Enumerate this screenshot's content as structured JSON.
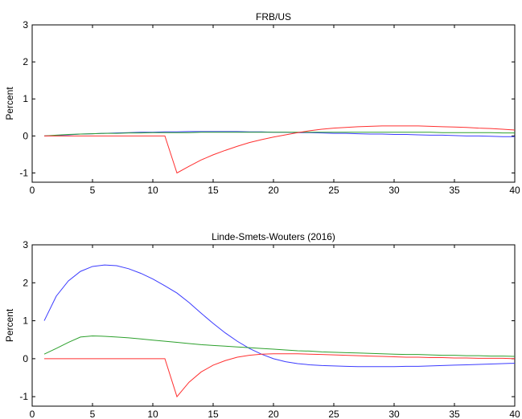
{
  "chart_data": [
    {
      "type": "line",
      "title": "FRB/US",
      "xlabel": "",
      "ylabel": "Percent",
      "xlim": [
        0,
        40
      ],
      "ylim": [
        -1.25,
        3
      ],
      "xticks": [
        0,
        5,
        10,
        15,
        20,
        25,
        30,
        35,
        40
      ],
      "yticks": [
        -1,
        0,
        1,
        2,
        3
      ],
      "grid": false,
      "series": [
        {
          "color": "#3b3bff",
          "x": [
            1,
            2,
            3,
            4,
            5,
            6,
            7,
            8,
            9,
            10,
            11,
            12,
            13,
            14,
            15,
            16,
            17,
            18,
            19,
            20,
            21,
            22,
            23,
            24,
            25,
            26,
            27,
            28,
            29,
            30,
            31,
            32,
            33,
            34,
            35,
            36,
            37,
            38,
            39,
            40
          ],
          "values": [
            0,
            0.01,
            0.03,
            0.05,
            0.06,
            0.07,
            0.08,
            0.09,
            0.1,
            0.1,
            0.11,
            0.11,
            0.12,
            0.12,
            0.12,
            0.12,
            0.12,
            0.11,
            0.11,
            0.1,
            0.1,
            0.09,
            0.09,
            0.08,
            0.07,
            0.07,
            0.06,
            0.05,
            0.05,
            0.04,
            0.04,
            0.03,
            0.02,
            0.02,
            0.01,
            0.0,
            0.0,
            -0.01,
            -0.02,
            -0.02
          ]
        },
        {
          "color": "#2ca02c",
          "x": [
            1,
            2,
            3,
            4,
            5,
            6,
            7,
            8,
            9,
            10,
            11,
            12,
            13,
            14,
            15,
            16,
            17,
            18,
            19,
            20,
            21,
            22,
            23,
            24,
            25,
            26,
            27,
            28,
            29,
            30,
            31,
            32,
            33,
            34,
            35,
            36,
            37,
            38,
            39,
            40
          ],
          "values": [
            0,
            0.02,
            0.04,
            0.05,
            0.06,
            0.07,
            0.07,
            0.08,
            0.08,
            0.09,
            0.09,
            0.09,
            0.09,
            0.1,
            0.1,
            0.1,
            0.1,
            0.1,
            0.1,
            0.1,
            0.1,
            0.1,
            0.1,
            0.1,
            0.1,
            0.1,
            0.1,
            0.1,
            0.1,
            0.1,
            0.1,
            0.1,
            0.1,
            0.09,
            0.09,
            0.09,
            0.09,
            0.09,
            0.08,
            0.08
          ]
        },
        {
          "color": "#ff3030",
          "x": [
            1,
            2,
            3,
            4,
            5,
            6,
            7,
            8,
            9,
            10,
            11,
            12,
            13,
            14,
            15,
            16,
            17,
            18,
            19,
            20,
            21,
            22,
            23,
            24,
            25,
            26,
            27,
            28,
            29,
            30,
            31,
            32,
            33,
            34,
            35,
            36,
            37,
            38,
            39,
            40
          ],
          "values": [
            0,
            0,
            0,
            0,
            0,
            0,
            0,
            0,
            0,
            0,
            0,
            -1.0,
            -0.82,
            -0.65,
            -0.51,
            -0.39,
            -0.28,
            -0.18,
            -0.1,
            -0.03,
            0.03,
            0.09,
            0.14,
            0.18,
            0.21,
            0.23,
            0.25,
            0.26,
            0.27,
            0.27,
            0.27,
            0.27,
            0.26,
            0.25,
            0.24,
            0.23,
            0.21,
            0.2,
            0.18,
            0.16
          ]
        }
      ]
    },
    {
      "type": "line",
      "title": "Linde-Smets-Wouters (2016)",
      "xlabel": "",
      "ylabel": "Percent",
      "xlim": [
        0,
        40
      ],
      "ylim": [
        -1.25,
        3
      ],
      "xticks": [
        0,
        5,
        10,
        15,
        20,
        25,
        30,
        35,
        40
      ],
      "yticks": [
        -1,
        0,
        1,
        2,
        3
      ],
      "grid": false,
      "series": [
        {
          "color": "#3b3bff",
          "x": [
            1,
            2,
            3,
            4,
            5,
            6,
            7,
            8,
            9,
            10,
            11,
            12,
            13,
            14,
            15,
            16,
            17,
            18,
            19,
            20,
            21,
            22,
            23,
            24,
            25,
            26,
            27,
            28,
            29,
            30,
            31,
            32,
            33,
            34,
            35,
            36,
            37,
            38,
            39,
            40
          ],
          "values": [
            1.0,
            1.65,
            2.05,
            2.3,
            2.43,
            2.47,
            2.45,
            2.37,
            2.25,
            2.1,
            1.92,
            1.73,
            1.48,
            1.2,
            0.93,
            0.68,
            0.46,
            0.27,
            0.12,
            0.0,
            -0.08,
            -0.13,
            -0.16,
            -0.18,
            -0.19,
            -0.2,
            -0.21,
            -0.21,
            -0.21,
            -0.21,
            -0.2,
            -0.2,
            -0.19,
            -0.18,
            -0.17,
            -0.16,
            -0.15,
            -0.14,
            -0.13,
            -0.12
          ]
        },
        {
          "color": "#2ca02c",
          "x": [
            1,
            2,
            3,
            4,
            5,
            6,
            7,
            8,
            9,
            10,
            11,
            12,
            13,
            14,
            15,
            16,
            17,
            18,
            19,
            20,
            21,
            22,
            23,
            24,
            25,
            26,
            27,
            28,
            29,
            30,
            31,
            32,
            33,
            34,
            35,
            36,
            37,
            38,
            39,
            40
          ],
          "values": [
            0.12,
            0.27,
            0.43,
            0.57,
            0.6,
            0.59,
            0.57,
            0.55,
            0.52,
            0.49,
            0.46,
            0.43,
            0.4,
            0.37,
            0.35,
            0.33,
            0.31,
            0.29,
            0.27,
            0.25,
            0.23,
            0.21,
            0.2,
            0.18,
            0.17,
            0.16,
            0.15,
            0.14,
            0.13,
            0.12,
            0.11,
            0.11,
            0.1,
            0.09,
            0.09,
            0.08,
            0.08,
            0.07,
            0.07,
            0.06
          ]
        },
        {
          "color": "#ff3030",
          "x": [
            1,
            2,
            3,
            4,
            5,
            6,
            7,
            8,
            9,
            10,
            11,
            12,
            13,
            14,
            15,
            16,
            17,
            18,
            19,
            20,
            21,
            22,
            23,
            24,
            25,
            26,
            27,
            28,
            29,
            30,
            31,
            32,
            33,
            34,
            35,
            36,
            37,
            38,
            39,
            40
          ],
          "values": [
            0,
            0,
            0,
            0,
            0,
            0,
            0,
            0,
            0,
            0,
            0,
            -1.0,
            -0.62,
            -0.35,
            -0.17,
            -0.05,
            0.04,
            0.09,
            0.12,
            0.13,
            0.13,
            0.13,
            0.12,
            0.11,
            0.1,
            0.09,
            0.08,
            0.07,
            0.06,
            0.05,
            0.04,
            0.04,
            0.03,
            0.03,
            0.02,
            0.02,
            0.01,
            0.01,
            0.01,
            0.0
          ]
        }
      ]
    }
  ]
}
